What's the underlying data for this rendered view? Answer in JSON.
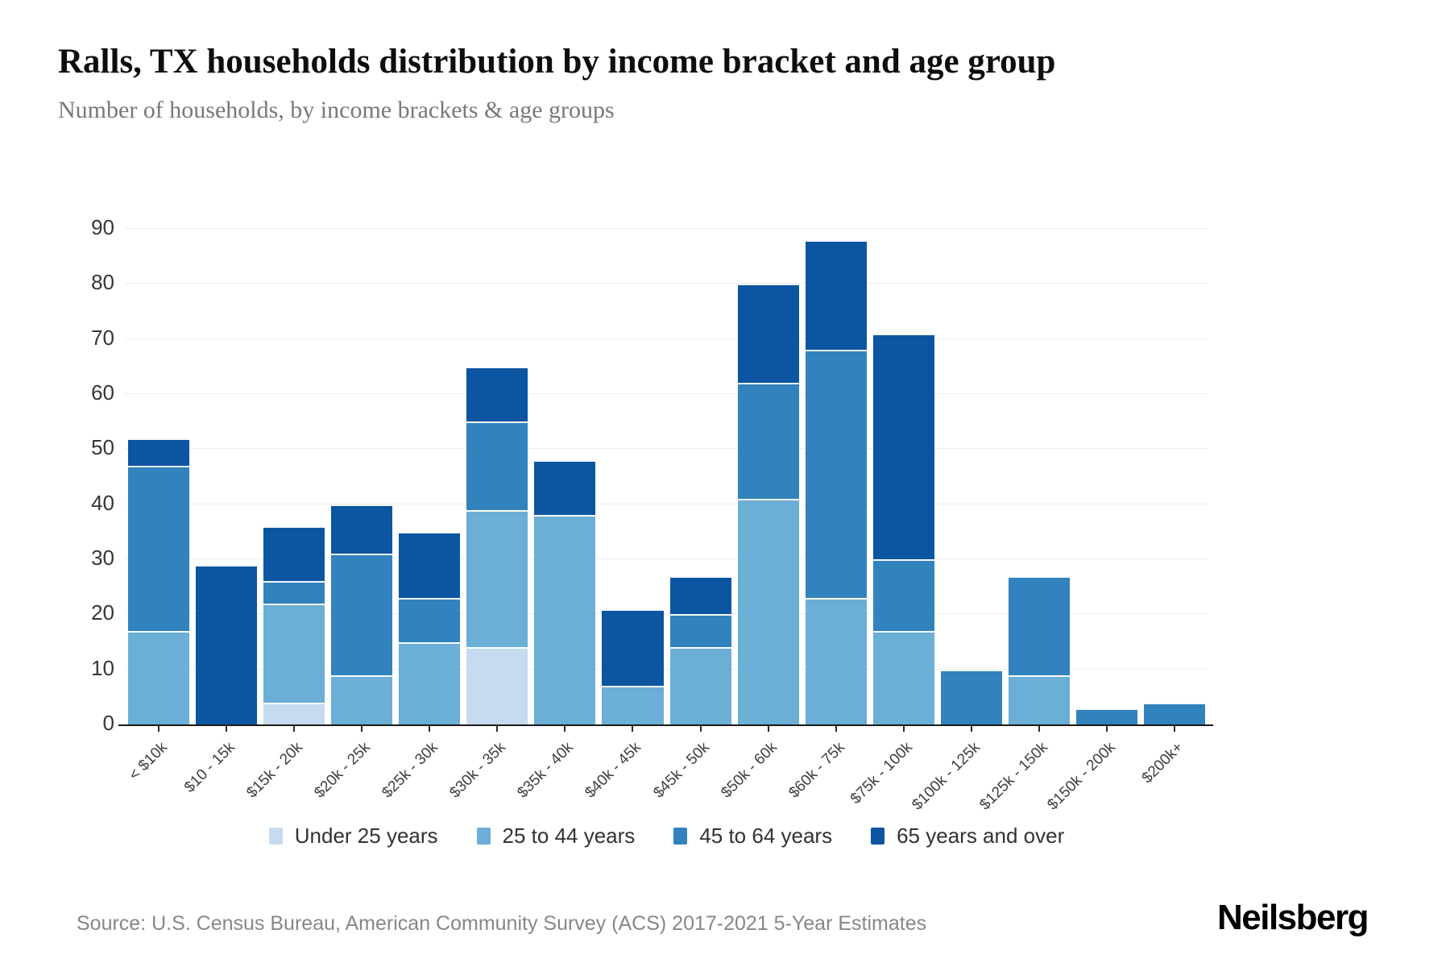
{
  "header": {
    "title": "Ralls, TX households distribution by income bracket and age group",
    "subtitle": "Number of households, by income brackets & age groups"
  },
  "chart_data": {
    "type": "bar",
    "stacked": true,
    "title": "Ralls, TX households distribution by income bracket and age group",
    "subtitle": "Number of households, by income brackets & age groups",
    "xlabel": "",
    "ylabel": "",
    "ylim": [
      0,
      90
    ],
    "yticks": [
      0,
      10,
      20,
      30,
      40,
      50,
      60,
      70,
      80,
      90
    ],
    "grid": "horizontal",
    "legend_position": "bottom",
    "categories": [
      "< $10k",
      "$10 - 15k",
      "$15k - 20k",
      "$20k - 25k",
      "$25k - 30k",
      "$30k - 35k",
      "$35k - 40k",
      "$40k - 45k",
      "$45k - 50k",
      "$50k - 60k",
      "$60k - 75k",
      "$75k - 100k",
      "$100k - 125k",
      "$125k - 150k",
      "$150k - 200k",
      "$200k+"
    ],
    "series": [
      {
        "name": "Under 25 years",
        "color": "#c6dbef",
        "values": [
          0,
          0,
          4,
          0,
          0,
          14,
          0,
          0,
          0,
          0,
          0,
          0,
          0,
          0,
          0,
          0
        ]
      },
      {
        "name": "25 to 44 years",
        "color": "#6baed6",
        "values": [
          17,
          0,
          18,
          9,
          15,
          25,
          38,
          7,
          14,
          41,
          23,
          17,
          0,
          9,
          0,
          0
        ]
      },
      {
        "name": "45 to 64 years",
        "color": "#3182bd",
        "values": [
          30,
          0,
          4,
          22,
          8,
          16,
          0,
          0,
          6,
          21,
          45,
          13,
          10,
          18,
          3,
          4
        ]
      },
      {
        "name": "65 years and over",
        "color": "#0b55a1",
        "values": [
          5,
          29,
          10,
          9,
          12,
          10,
          10,
          14,
          7,
          18,
          20,
          41,
          0,
          0,
          0,
          0
        ]
      }
    ],
    "totals": [
      52,
      29,
      36,
      40,
      35,
      65,
      48,
      21,
      27,
      80,
      88,
      71,
      10,
      27,
      3,
      4
    ]
  },
  "footer": {
    "source": "Source: U.S. Census Bureau, American Community Survey (ACS) 2017-2021 5-Year Estimates",
    "brand": "Neilsberg"
  }
}
